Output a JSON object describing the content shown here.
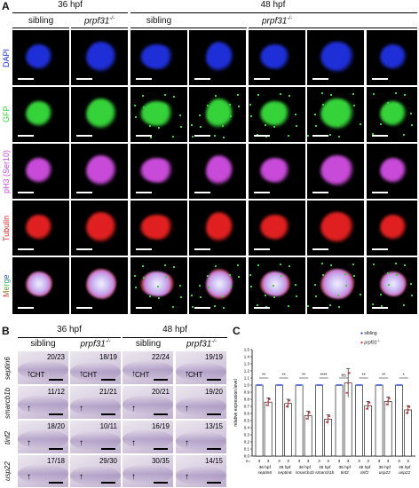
{
  "panelA": {
    "letter": "A",
    "time_headers": [
      "36 hpf",
      "48 hpf"
    ],
    "col_headers": [
      "sibling",
      "prpf31",
      "sibling",
      "prpf31"
    ],
    "superscript": "-/-",
    "row_labels": [
      "DAPI",
      "GFP",
      "pH3 (Ser10)",
      "Tubulin",
      "Merge"
    ],
    "colors": {
      "DAPI": "#1f2fd8",
      "GFP": "#36d23a",
      "pH3": "#c84ad8",
      "Tubulin": "#e02020"
    }
  },
  "panelB": {
    "letter": "B",
    "time_headers": [
      "36 hpf",
      "48 hpf"
    ],
    "col_headers": [
      "sibling",
      "prpf31",
      "sibling",
      "prpf31"
    ],
    "superscript": "-/-",
    "row_labels": [
      "septin6",
      "smarcb1b",
      "tinf2",
      "usp22"
    ],
    "counts": [
      [
        "20/23",
        "18/19",
        "22/24",
        "19/19"
      ],
      [
        "11/12",
        "21/21",
        "20/21",
        "19/20"
      ],
      [
        "18/20",
        "10/11",
        "16/19",
        "13/15"
      ],
      [
        "17/18",
        "29/30",
        "30/35",
        "14/15"
      ]
    ],
    "cht_label": "CHT",
    "arrow": "↑"
  },
  "panelC": {
    "letter": "C",
    "legend": [
      {
        "name": "sibling",
        "color": "#1a3fd0"
      },
      {
        "name": "prpf31",
        "sup": "-/-",
        "color": "#d43030"
      }
    ]
  },
  "chart_data": {
    "type": "bar",
    "ylabel": "relative expression level",
    "ylim": [
      0,
      1.5
    ],
    "yticks": [
      "0.0",
      "0.1",
      "0.2",
      "0.3",
      "0.4",
      "0.5",
      "0.6",
      "0.7",
      "0.8",
      "0.9",
      "1.0",
      "1.1",
      "1.2",
      "1.3",
      "1.4",
      "1.5"
    ],
    "n_label": "n=",
    "n_values": [
      "3",
      "3",
      "3",
      "3",
      "3",
      "3",
      "3",
      "3",
      "3",
      "3",
      "3",
      "3",
      "3",
      "3",
      "3",
      "3"
    ],
    "categories": [
      [
        "36 hpf",
        "septin6"
      ],
      [
        "48 hpf",
        "septin6"
      ],
      [
        "36 hpf",
        "smarcb1b"
      ],
      [
        "48 hpf",
        "smarcb1b"
      ],
      [
        "36 hpf",
        "tinf2"
      ],
      [
        "48 hpf",
        "tinf2"
      ],
      [
        "36 hpf",
        "usp22"
      ],
      [
        "48 hpf",
        "usp22"
      ]
    ],
    "series": [
      {
        "name": "sibling",
        "values": [
          1.0,
          1.0,
          1.0,
          1.0,
          1.0,
          1.0,
          1.0,
          1.0
        ]
      },
      {
        "name": "prpf31-/-",
        "values": [
          0.76,
          0.74,
          0.57,
          0.52,
          1.03,
          0.71,
          0.77,
          0.65
        ]
      }
    ],
    "significance": [
      "**",
      "**",
      "**",
      "****",
      "ns",
      "**",
      "**",
      "*"
    ]
  }
}
